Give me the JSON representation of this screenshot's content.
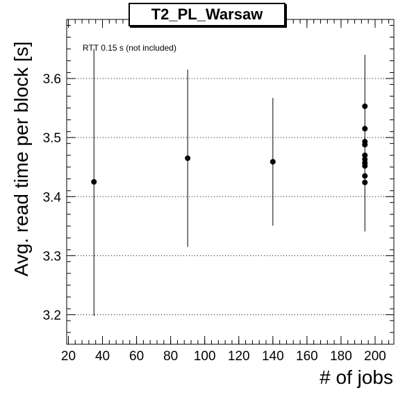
{
  "chart_data": {
    "type": "scatter",
    "title": "T2_PL_Warsaw",
    "xlabel": "# of jobs",
    "ylabel": "Avg. read time per block [s]",
    "annotation": "RTT 0.15 s (not included)",
    "xlim": [
      19,
      211
    ],
    "ylim": [
      3.15,
      3.7
    ],
    "x_ticks": [
      20,
      40,
      60,
      80,
      100,
      120,
      140,
      160,
      180,
      200
    ],
    "y_ticks": [
      3.2,
      3.3,
      3.4,
      3.5,
      3.6
    ],
    "grid": "horizontal dotted at major y ticks",
    "points": [
      {
        "x": 35,
        "y": 3.425,
        "ylow": 3.198,
        "yhigh": 3.65
      },
      {
        "x": 90,
        "y": 3.465,
        "ylow": 3.315,
        "yhigh": 3.615
      },
      {
        "x": 140,
        "y": 3.459,
        "ylow": 3.351,
        "yhigh": 3.567
      },
      {
        "x": 194,
        "y": 3.553,
        "ylow": 3.341,
        "yhigh": 3.64
      },
      {
        "x": 194,
        "y": 3.515
      },
      {
        "x": 194,
        "y": 3.493
      },
      {
        "x": 194,
        "y": 3.488
      },
      {
        "x": 194,
        "y": 3.47
      },
      {
        "x": 194,
        "y": 3.463
      },
      {
        "x": 194,
        "y": 3.457
      },
      {
        "x": 194,
        "y": 3.452
      },
      {
        "x": 194,
        "y": 3.435
      },
      {
        "x": 194,
        "y": 3.424
      }
    ]
  }
}
